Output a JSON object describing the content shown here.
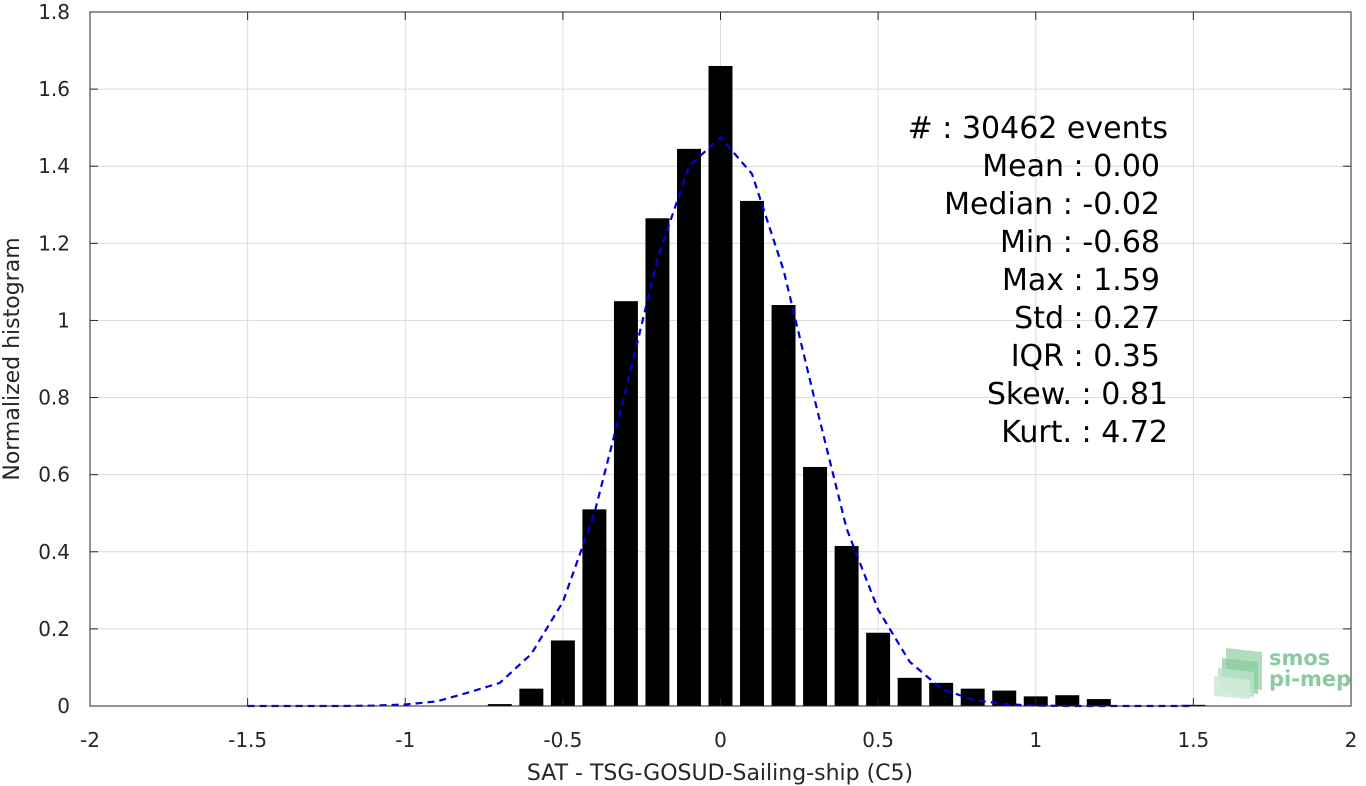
{
  "chart_data": {
    "type": "bar",
    "xlabel": "SAT - TSG-GOSUD-Sailing-ship (C5)",
    "ylabel": "Normalized histogram",
    "xlim": [
      -2,
      2
    ],
    "ylim": [
      0,
      1.8
    ],
    "x_ticks": [
      -2,
      -1.5,
      -1,
      -0.5,
      0,
      0.5,
      1,
      1.5,
      2
    ],
    "x_tick_labels": [
      "-2",
      "-1.5",
      "-1",
      "-0.5",
      "0",
      "0.5",
      "1",
      "1.5",
      "2"
    ],
    "y_ticks": [
      0,
      0.2,
      0.4,
      0.6,
      0.8,
      1,
      1.2,
      1.4,
      1.6,
      1.8
    ],
    "y_tick_labels": [
      "0",
      "0.2",
      "0.4",
      "0.6",
      "0.8",
      "1",
      "1.2",
      "1.4",
      "1.6",
      "1.8"
    ],
    "grid": true,
    "bar_color": "#000000",
    "bin_width": 0.1,
    "bars": {
      "x": [
        -0.7,
        -0.6,
        -0.5,
        -0.4,
        -0.3,
        -0.2,
        -0.1,
        0.0,
        0.1,
        0.2,
        0.3,
        0.4,
        0.5,
        0.6,
        0.7,
        0.8,
        0.9,
        1.0,
        1.1,
        1.2,
        1.5
      ],
      "values": [
        0.005,
        0.045,
        0.17,
        0.51,
        1.05,
        1.265,
        1.445,
        1.66,
        1.31,
        1.04,
        0.62,
        0.415,
        0.19,
        0.073,
        0.06,
        0.045,
        0.04,
        0.025,
        0.028,
        0.018,
        0.003
      ]
    },
    "fit_curve": {
      "color": "#0000dd",
      "style": "dashed",
      "x": [
        -1.5,
        -1.4,
        -1.3,
        -1.2,
        -1.1,
        -1.0,
        -0.9,
        -0.8,
        -0.7,
        -0.6,
        -0.5,
        -0.4,
        -0.3,
        -0.2,
        -0.1,
        0.0,
        0.1,
        0.2,
        0.3,
        0.4,
        0.5,
        0.6,
        0.7,
        0.8,
        0.9,
        1.0,
        1.1,
        1.2,
        1.3,
        1.4,
        1.5
      ],
      "y": [
        0.0,
        0.0,
        0.0,
        0.0,
        0.001,
        0.004,
        0.012,
        0.035,
        0.06,
        0.135,
        0.27,
        0.5,
        0.82,
        1.16,
        1.4,
        1.475,
        1.38,
        1.13,
        0.79,
        0.46,
        0.25,
        0.115,
        0.045,
        0.016,
        0.005,
        0.001,
        0.0,
        0.0,
        0.0,
        0.0,
        0.0
      ]
    },
    "annotations": [
      "#  : 30462 events",
      "Mean : 0.00",
      "Median : -0.02",
      "Min : -0.68",
      "Max : 1.59",
      "Std : 0.27",
      "IQR : 0.35",
      "Skew. : 0.81",
      "Kurt. : 4.72"
    ]
  },
  "logo": {
    "line1": "smos",
    "line2": "pi-mep",
    "color": "#8cc9a0"
  }
}
